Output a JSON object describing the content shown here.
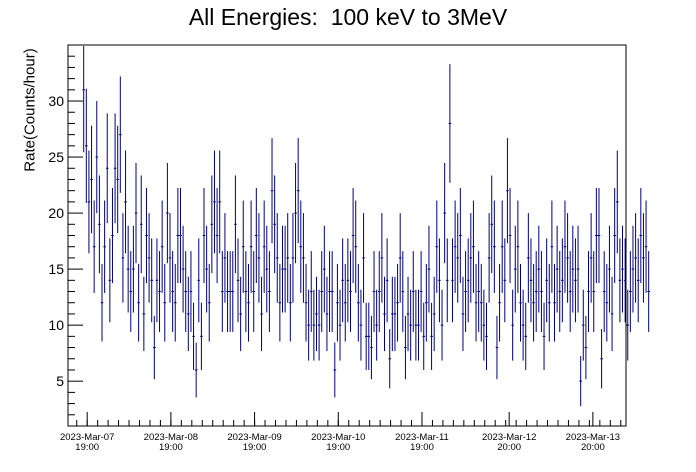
{
  "chart_data": {
    "type": "scatter",
    "title": "All Energies:  100 keV to 3MeV",
    "xlabel": "",
    "ylabel": "Rate(Counts/hour)",
    "x_tick_labels": [
      {
        "date": "2023-Mar-07",
        "time": "19:00",
        "t": 1.0
      },
      {
        "date": "2023-Mar-08",
        "time": "19:00",
        "t": 25.0
      },
      {
        "date": "2023-Mar-09",
        "time": "19:00",
        "t": 49.0
      },
      {
        "date": "2023-Mar-10",
        "time": "19:00",
        "t": 73.0
      },
      {
        "date": "2023-Mar-11",
        "time": "19:00",
        "t": 97.0
      },
      {
        "date": "2023-Mar-12",
        "time": "20:00",
        "t": 122.0
      },
      {
        "date": "2023-Mar-13",
        "time": "20:00",
        "t": 146.0
      }
    ],
    "x_axis_note": "t = hours since 2023-Mar-07 18:00",
    "xlim": [
      -4.5,
      155.5
    ],
    "yticks": [
      5,
      10,
      15,
      20,
      25,
      30
    ],
    "ylim": [
      1,
      35
    ],
    "grid": false,
    "marker_color": "#000080",
    "series": [
      {
        "name": "",
        "values": [
          31,
          26,
          21,
          23,
          17,
          25,
          19,
          12,
          17,
          24,
          14,
          18,
          24,
          23,
          27,
          16,
          21,
          15,
          13,
          15,
          20,
          12,
          19,
          11,
          18,
          16,
          14,
          8,
          14,
          13,
          17,
          12,
          20,
          16,
          13,
          12,
          18,
          18,
          15,
          13,
          11,
          13,
          9,
          6,
          14,
          9,
          18,
          15,
          12,
          19,
          21,
          18,
          21,
          13,
          16,
          13,
          13,
          13,
          19,
          14,
          11,
          17,
          13,
          12,
          17,
          13,
          18,
          16,
          11,
          17,
          15,
          13,
          22,
          19,
          16,
          12,
          15,
          15,
          16,
          12,
          16,
          20,
          22,
          17,
          16,
          12,
          10,
          13,
          10,
          11,
          10,
          13,
          15,
          11,
          13,
          13,
          6,
          12,
          10,
          14,
          12,
          14,
          13,
          18,
          17,
          12,
          10,
          16,
          9,
          9,
          8,
          13,
          10,
          13,
          16,
          11,
          14,
          7,
          11,
          11,
          12,
          16,
          13,
          8,
          11,
          10,
          13,
          10,
          10,
          13,
          9,
          12,
          15,
          9,
          11,
          17,
          14,
          10,
          20,
          14,
          28,
          14,
          17,
          16,
          18,
          11,
          13,
          14,
          16,
          17,
          12,
          13,
          12,
          10,
          9,
          16,
          19,
          17,
          8,
          12,
          17,
          14,
          22,
          18,
          10,
          15,
          17,
          12,
          10,
          9,
          16,
          14,
          12,
          13,
          15,
          13,
          9,
          14,
          12,
          17,
          12,
          15,
          13,
          14,
          17,
          16,
          13,
          15,
          14,
          15,
          5,
          10,
          8,
          13,
          16,
          13,
          18,
          18,
          7,
          13,
          12,
          15,
          11,
          18,
          21,
          14,
          15,
          14,
          10,
          13,
          15,
          16,
          14,
          18,
          16,
          17,
          13
        ]
      }
    ]
  }
}
